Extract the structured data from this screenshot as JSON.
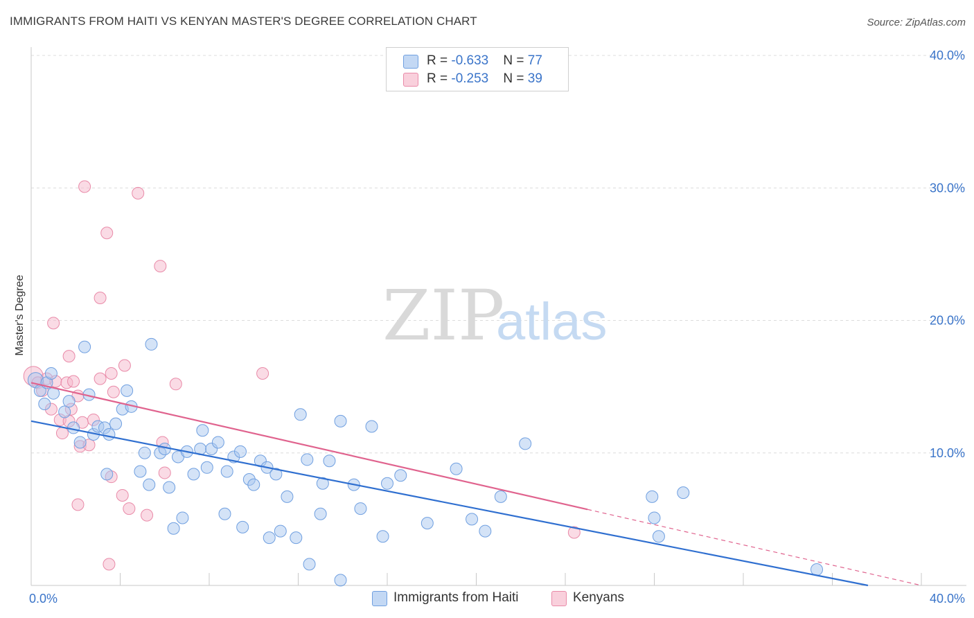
{
  "header": {
    "title": "IMMIGRANTS FROM HAITI VS KENYAN MASTER'S DEGREE CORRELATION CHART",
    "source": "Source: ZipAtlas.com"
  },
  "watermark": {
    "zip": "ZIP",
    "atlas": "atlas"
  },
  "legend": {
    "rows": [
      {
        "r_label": "R = ",
        "r_value": "-0.633",
        "n_label": "N = ",
        "n_value": "77",
        "color": "#a9c7ef"
      },
      {
        "r_label": "R = ",
        "r_value": "-0.253",
        "n_label": "N = ",
        "n_value": "39",
        "color": "#f5b8cb"
      }
    ]
  },
  "bottom_legend": {
    "items": [
      {
        "label": "Immigrants from Haiti",
        "color": "#a9c7ef"
      },
      {
        "label": "Kenyans",
        "color": "#f5b8cb"
      }
    ]
  },
  "colors": {
    "blue_fill": "#a9c7ef",
    "blue_stroke": "#6f9fe0",
    "blue_line": "#2f6fd0",
    "pink_fill": "#f5b8cb",
    "pink_stroke": "#e98aa8",
    "pink_line": "#e0638e",
    "grid": "#dcdcdc",
    "axis": "#c8c8c8"
  },
  "chart_data": {
    "type": "scatter",
    "title": "IMMIGRANTS FROM HAITI VS KENYAN MASTER'S DEGREE CORRELATION CHART",
    "xlabel": "",
    "ylabel": "Master's Degree",
    "xlim": [
      0,
      40
    ],
    "ylim": [
      0,
      40
    ],
    "x_tick_labels": [
      {
        "value": 0,
        "label": "0.0%"
      },
      {
        "value": 40,
        "label": "40.0%"
      }
    ],
    "y_tick_labels": [
      {
        "value": 10,
        "label": "10.0%"
      },
      {
        "value": 20,
        "label": "20.0%"
      },
      {
        "value": 30,
        "label": "30.0%"
      },
      {
        "value": 40,
        "label": "40.0%"
      }
    ],
    "grid": true,
    "legend_position": "top-center",
    "series": [
      {
        "name": "Immigrants from Haiti",
        "r": -0.633,
        "n": 77,
        "trend": {
          "x0": 0,
          "y0": 12.4,
          "x1": 37.6,
          "y1": 0,
          "solid_until": 37.6
        },
        "points": [
          [
            0.2,
            15.5
          ],
          [
            0.4,
            14.7
          ],
          [
            0.6,
            13.7
          ],
          [
            0.7,
            15.3
          ],
          [
            0.9,
            16.0
          ],
          [
            1.0,
            14.5
          ],
          [
            1.5,
            13.1
          ],
          [
            1.7,
            13.9
          ],
          [
            1.9,
            11.9
          ],
          [
            2.2,
            10.8
          ],
          [
            2.4,
            18.0
          ],
          [
            2.6,
            14.4
          ],
          [
            2.8,
            11.4
          ],
          [
            3.0,
            12.0
          ],
          [
            3.3,
            11.9
          ],
          [
            3.4,
            8.4
          ],
          [
            3.5,
            11.4
          ],
          [
            3.8,
            12.2
          ],
          [
            4.1,
            13.3
          ],
          [
            4.3,
            14.7
          ],
          [
            4.5,
            13.5
          ],
          [
            4.9,
            8.6
          ],
          [
            5.1,
            10.0
          ],
          [
            5.3,
            7.6
          ],
          [
            5.4,
            18.2
          ],
          [
            5.8,
            10.0
          ],
          [
            6.0,
            10.3
          ],
          [
            6.2,
            7.4
          ],
          [
            6.4,
            4.3
          ],
          [
            6.6,
            9.7
          ],
          [
            6.8,
            5.1
          ],
          [
            7.0,
            10.1
          ],
          [
            7.3,
            8.4
          ],
          [
            7.6,
            10.3
          ],
          [
            7.7,
            11.7
          ],
          [
            7.9,
            8.9
          ],
          [
            8.1,
            10.3
          ],
          [
            8.4,
            10.8
          ],
          [
            8.7,
            5.4
          ],
          [
            8.8,
            8.6
          ],
          [
            9.1,
            9.7
          ],
          [
            9.4,
            10.1
          ],
          [
            9.5,
            4.4
          ],
          [
            9.8,
            8.0
          ],
          [
            10.0,
            7.6
          ],
          [
            10.3,
            9.4
          ],
          [
            10.6,
            8.9
          ],
          [
            10.7,
            3.6
          ],
          [
            11.0,
            8.4
          ],
          [
            11.2,
            4.1
          ],
          [
            11.5,
            6.7
          ],
          [
            11.9,
            3.6
          ],
          [
            12.1,
            12.9
          ],
          [
            12.4,
            9.5
          ],
          [
            12.5,
            1.6
          ],
          [
            13.0,
            5.4
          ],
          [
            13.1,
            7.7
          ],
          [
            13.4,
            9.4
          ],
          [
            13.9,
            0.4
          ],
          [
            13.9,
            12.4
          ],
          [
            14.5,
            7.6
          ],
          [
            14.8,
            5.8
          ],
          [
            15.3,
            12.0
          ],
          [
            15.8,
            3.7
          ],
          [
            16.0,
            7.7
          ],
          [
            16.6,
            8.3
          ],
          [
            17.8,
            4.7
          ],
          [
            19.1,
            8.8
          ],
          [
            19.8,
            5.0
          ],
          [
            20.4,
            4.1
          ],
          [
            21.1,
            6.7
          ],
          [
            22.2,
            10.7
          ],
          [
            27.9,
            6.7
          ],
          [
            28.0,
            5.1
          ],
          [
            28.2,
            3.7
          ],
          [
            29.3,
            7.0
          ],
          [
            35.3,
            1.2
          ]
        ]
      },
      {
        "name": "Kenyans",
        "r": -0.253,
        "n": 39,
        "trend": {
          "x0": 0,
          "y0": 15.3,
          "x1": 40,
          "y1": 0,
          "solid_until": 25.0
        },
        "points": [
          [
            0.1,
            15.8
          ],
          [
            0.3,
            15.3
          ],
          [
            0.5,
            14.7
          ],
          [
            0.7,
            15.6
          ],
          [
            0.9,
            13.3
          ],
          [
            1.0,
            19.8
          ],
          [
            1.1,
            15.4
          ],
          [
            1.3,
            12.5
          ],
          [
            1.4,
            11.5
          ],
          [
            1.6,
            15.3
          ],
          [
            1.7,
            12.4
          ],
          [
            1.7,
            17.3
          ],
          [
            1.8,
            13.3
          ],
          [
            1.9,
            15.4
          ],
          [
            2.1,
            14.3
          ],
          [
            2.1,
            6.1
          ],
          [
            2.2,
            10.5
          ],
          [
            2.3,
            12.3
          ],
          [
            2.4,
            30.1
          ],
          [
            2.6,
            10.6
          ],
          [
            2.8,
            12.5
          ],
          [
            3.1,
            15.6
          ],
          [
            3.1,
            21.7
          ],
          [
            3.4,
            26.6
          ],
          [
            3.5,
            1.6
          ],
          [
            3.6,
            8.2
          ],
          [
            3.6,
            16.0
          ],
          [
            3.7,
            14.6
          ],
          [
            4.1,
            6.8
          ],
          [
            4.2,
            16.6
          ],
          [
            4.4,
            5.8
          ],
          [
            4.8,
            29.6
          ],
          [
            5.2,
            5.3
          ],
          [
            5.8,
            24.1
          ],
          [
            5.9,
            10.8
          ],
          [
            6.0,
            8.5
          ],
          [
            6.5,
            15.2
          ],
          [
            10.4,
            16.0
          ],
          [
            24.4,
            4.0
          ]
        ]
      }
    ]
  }
}
